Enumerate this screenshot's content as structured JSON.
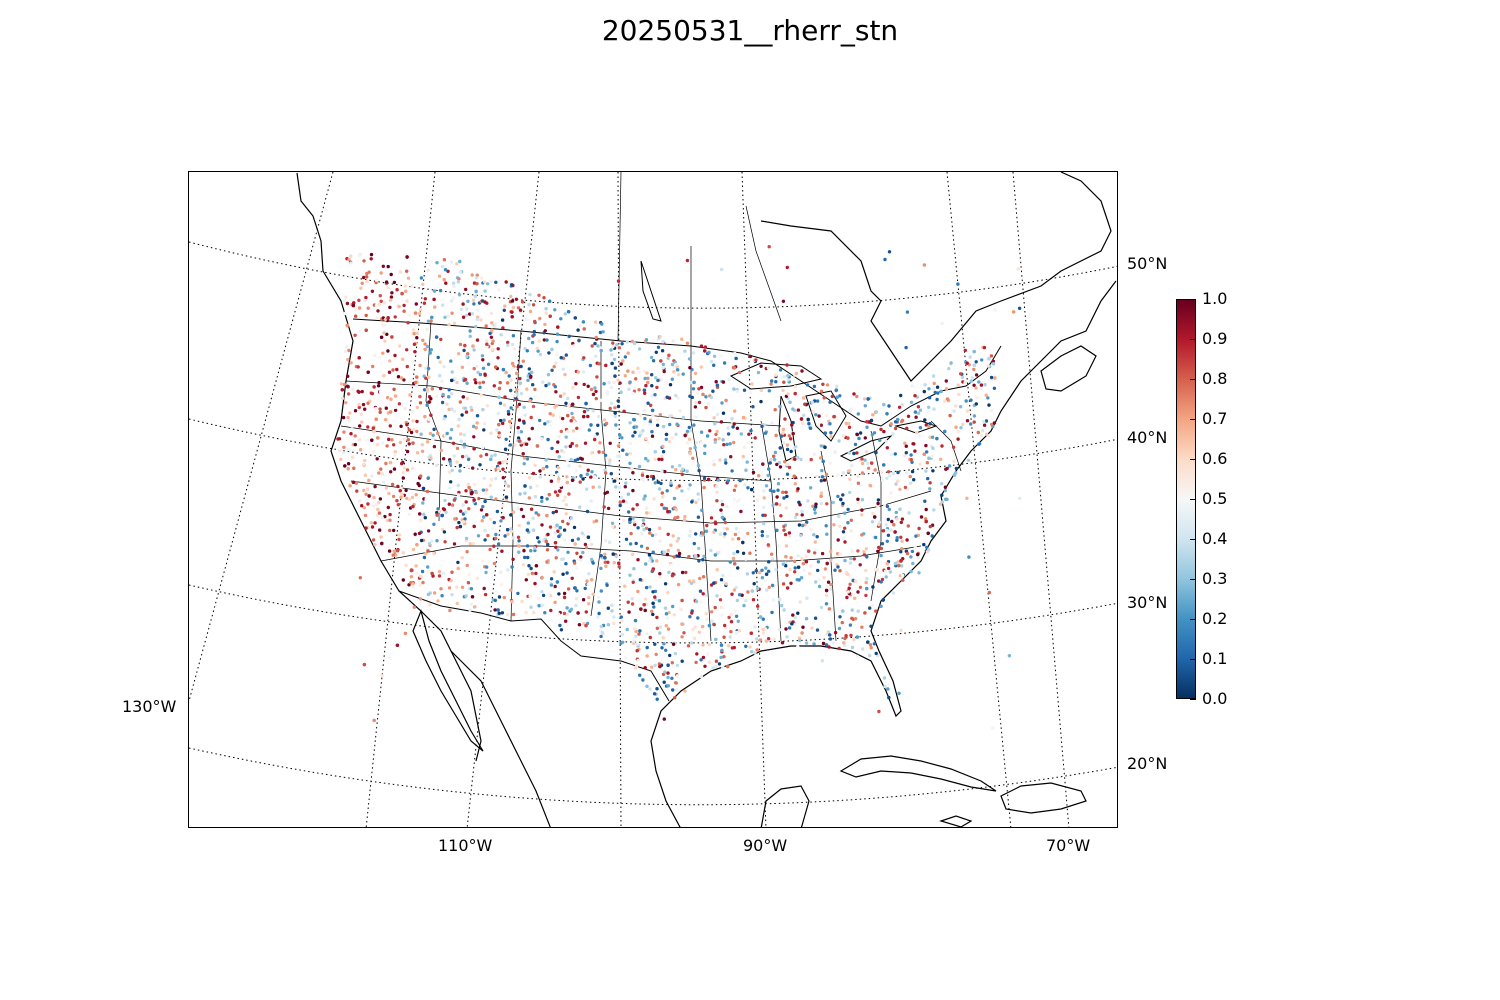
{
  "title": "20250531__rherr_stn",
  "map": {
    "projection": "Lambert conformal conic",
    "region": "Continental United States, southern Canada, Mexico, Caribbean",
    "features": [
      "coastlines",
      "country-borders",
      "state-borders",
      "lakes",
      "graticule"
    ],
    "graticule_style": "dotted",
    "longitude_labels": [
      "130°W",
      "110°W",
      "90°W",
      "70°W"
    ],
    "latitude_labels": [
      "50°N",
      "40°N",
      "30°N",
      "20°N"
    ],
    "marker": "small filled circle per station"
  },
  "colorbar": {
    "colormap": "RdBu_r",
    "min": 0.0,
    "max": 1.0,
    "ticks": [
      "0.0",
      "0.1",
      "0.2",
      "0.3",
      "0.4",
      "0.5",
      "0.6",
      "0.7",
      "0.8",
      "0.9",
      "1.0"
    ],
    "colors": {
      "low": "#053061",
      "mid": "#f7f7f7",
      "high": "#67001f"
    }
  }
}
